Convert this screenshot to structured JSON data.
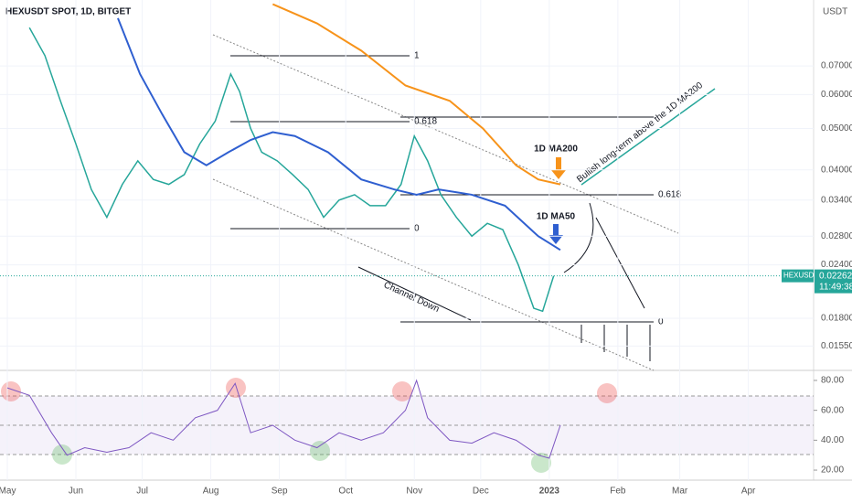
{
  "chart_data": {
    "type": "line",
    "title": "HEXUSDT SPOT, 1D, BITGET",
    "axis_unit": "USDT",
    "log": true,
    "ylim": [
      0.0136,
      0.0998
    ],
    "yticks": [
      {
        "value": 0.07,
        "label": "0.07000"
      },
      {
        "value": 0.06,
        "label": "0.06000"
      },
      {
        "value": 0.05,
        "label": "0.05000"
      },
      {
        "value": 0.04,
        "label": "0.04000"
      },
      {
        "value": 0.034,
        "label": "0.03400"
      },
      {
        "value": 0.028,
        "label": "0.02800"
      },
      {
        "value": 0.024,
        "label": "0.02400"
      },
      {
        "value": 0.018,
        "label": "0.01800"
      },
      {
        "value": 0.0155,
        "label": "0.01550"
      }
    ],
    "xlim": [
      -3.3,
      364.5
    ],
    "xticks": [
      {
        "value": 0,
        "label": "May"
      },
      {
        "value": 31,
        "label": "Jun"
      },
      {
        "value": 61,
        "label": "Jul"
      },
      {
        "value": 92,
        "label": "Aug"
      },
      {
        "value": 123,
        "label": "Sep"
      },
      {
        "value": 153,
        "label": "Oct"
      },
      {
        "value": 184,
        "label": "Nov"
      },
      {
        "value": 214,
        "label": "Dec"
      },
      {
        "value": 245,
        "label": "2023"
      },
      {
        "value": 276,
        "label": "Feb"
      },
      {
        "value": 304,
        "label": "Mar"
      },
      {
        "value": 335,
        "label": "Apr"
      }
    ],
    "series": [
      {
        "name": "HEXUSDT",
        "color": "#26a69a",
        "x": [
          10,
          17,
          24,
          31,
          38,
          45,
          52,
          59,
          66,
          73,
          80,
          87,
          94,
          101,
          105,
          110,
          115,
          122,
          129,
          136,
          143,
          150,
          157,
          164,
          171,
          178,
          184,
          190,
          196,
          203,
          210,
          217,
          224,
          231,
          238,
          242,
          247
        ],
        "values": [
          0.086,
          0.074,
          0.058,
          0.046,
          0.036,
          0.031,
          0.037,
          0.042,
          0.038,
          0.037,
          0.039,
          0.046,
          0.052,
          0.067,
          0.061,
          0.05,
          0.044,
          0.042,
          0.039,
          0.036,
          0.031,
          0.034,
          0.035,
          0.033,
          0.033,
          0.037,
          0.048,
          0.042,
          0.035,
          0.031,
          0.028,
          0.03,
          0.029,
          0.024,
          0.019,
          0.0187,
          0.02262
        ]
      },
      {
        "name": "1D MA200",
        "color": "#f7931a",
        "x": [
          120,
          140,
          160,
          180,
          200,
          215,
          230,
          240,
          250
        ],
        "values": [
          0.0976,
          0.088,
          0.076,
          0.063,
          0.058,
          0.05,
          0.041,
          0.038,
          0.037
        ]
      },
      {
        "name": "1D MA50",
        "color": "#2f5fd0",
        "x": [
          50,
          60,
          70,
          80,
          90,
          100,
          110,
          120,
          130,
          145,
          160,
          175,
          185,
          195,
          210,
          225,
          240,
          250
        ],
        "values": [
          0.0905,
          0.067,
          0.054,
          0.044,
          0.041,
          0.044,
          0.047,
          0.049,
          0.048,
          0.044,
          0.038,
          0.036,
          0.035,
          0.036,
          0.035,
          0.033,
          0.028,
          0.026
        ]
      }
    ],
    "last_price": {
      "name": "HEXUSDT",
      "label": "0.02262",
      "countdown": "11:49:38",
      "value": 0.02262
    },
    "annotations": {
      "fib_top_1": "1",
      "fib_top_618": "0.618",
      "fib_top_0": "0",
      "fib_low_618": "0.618",
      "fib_low_0": "0",
      "ma200_label": "1D MA200",
      "ma50_label": "1D MA50",
      "bullish": "Bullish long-term above the 1D MA200",
      "channel": "Channel Down"
    },
    "rsi": {
      "color": "#7e57c2",
      "ylim": [
        13.3,
        86.7
      ],
      "yticks": [
        {
          "value": 80,
          "label": "80.00"
        },
        {
          "value": 60,
          "label": "60.00"
        },
        {
          "value": 40,
          "label": "40.00"
        },
        {
          "value": 20,
          "label": "20.00"
        }
      ],
      "x": [
        0,
        10,
        20,
        27,
        35,
        45,
        55,
        65,
        75,
        85,
        95,
        103,
        110,
        120,
        130,
        140,
        150,
        160,
        170,
        180,
        185,
        190,
        200,
        210,
        220,
        230,
        240,
        245,
        250
      ],
      "values": [
        75,
        70,
        45,
        30,
        35,
        32,
        35,
        45,
        40,
        55,
        60,
        78,
        45,
        50,
        40,
        35,
        45,
        40,
        45,
        60,
        80,
        55,
        40,
        38,
        45,
        40,
        30,
        28,
        50
      ]
    }
  }
}
